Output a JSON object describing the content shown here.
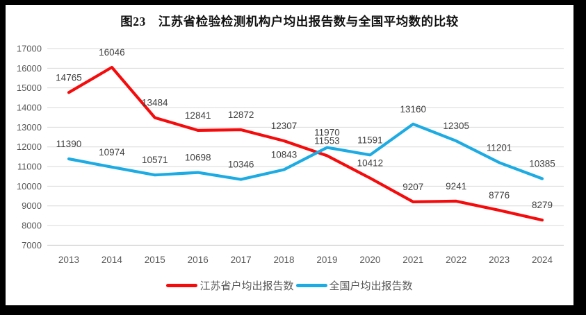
{
  "frame": {
    "border_color": "#000000",
    "background_color": "#ffffff"
  },
  "chart_data": {
    "type": "line",
    "title": "图23　江苏省检验检测机构户均出报告数与全国平均数的比较",
    "categories": [
      "2013",
      "2014",
      "2015",
      "2016",
      "2017",
      "2018",
      "2019",
      "2020",
      "2021",
      "2022",
      "2023",
      "2024"
    ],
    "series": [
      {
        "name": "江苏省户均出报告数",
        "color": "#f50b0b",
        "values": [
          14765,
          16046,
          13484,
          12841,
          12872,
          12307,
          11553,
          10412,
          9207,
          9241,
          8776,
          8279
        ]
      },
      {
        "name": "全国户均出报告数",
        "color": "#1cabe2",
        "values": [
          11390,
          10974,
          10571,
          10698,
          10346,
          10843,
          11970,
          11591,
          13160,
          12305,
          11201,
          10385
        ]
      }
    ],
    "xlabel": "",
    "ylabel": "",
    "ylim": [
      7000,
      17000
    ],
    "yticks": [
      7000,
      8000,
      9000,
      10000,
      11000,
      12000,
      13000,
      14000,
      15000,
      16000,
      17000
    ],
    "grid": true,
    "gridline_color": "#d9d9d9",
    "axis_line_color": "#c6c6c6",
    "axis_label_color": "#595959",
    "data_label_color": "#404040",
    "legend_position": "bottom",
    "data_labels_shown": true
  }
}
